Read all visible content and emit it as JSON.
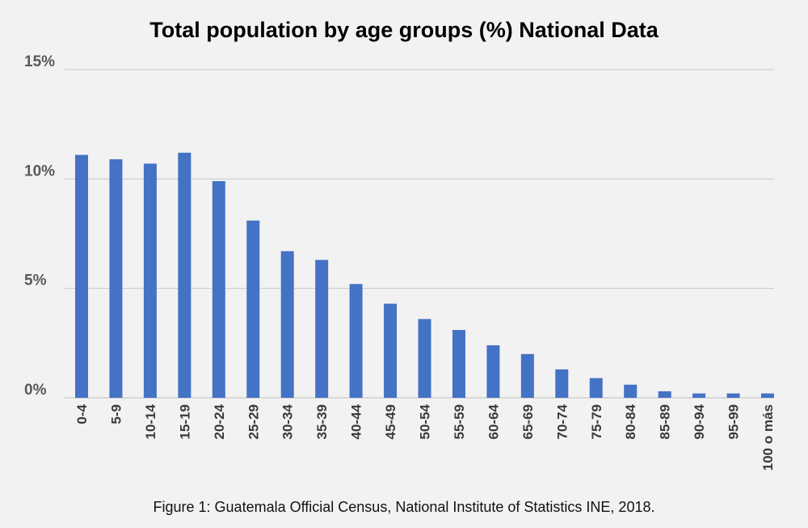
{
  "chart_data": {
    "type": "bar",
    "title": "Total population by age groups (%) National Data",
    "xlabel": "",
    "ylabel": "",
    "ylim": [
      0,
      15
    ],
    "yticks": [
      "0%",
      "5%",
      "10%",
      "15%"
    ],
    "ytick_values": [
      0,
      5,
      10,
      15
    ],
    "grid": true,
    "bar_color": "#4472c4",
    "categories": [
      "0-4",
      "5-9",
      "10-14",
      "15-19",
      "20-24",
      "25-29",
      "30-34",
      "35-39",
      "40-44",
      "45-49",
      "50-54",
      "55-59",
      "60-64",
      "65-69",
      "70-74",
      "75-79",
      "80-84",
      "85-89",
      "90-94",
      "95-99",
      "100 o más"
    ],
    "values": [
      11.1,
      10.9,
      10.7,
      11.2,
      9.9,
      8.1,
      6.7,
      6.3,
      5.2,
      4.3,
      3.6,
      3.1,
      2.4,
      2.0,
      1.3,
      0.9,
      0.6,
      0.3,
      0.2,
      0.2,
      0.2
    ]
  },
  "caption": "Figure 1: Guatemala Official Census, National Institute of Statistics INE, 2018."
}
